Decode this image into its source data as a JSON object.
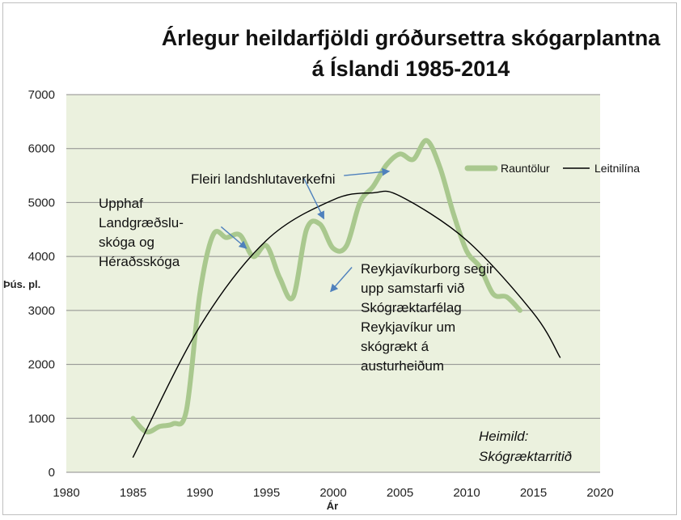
{
  "chart_data": {
    "type": "line",
    "title_lines": [
      "Árlegur heildarfjöldi gróðursettra skógarplantna",
      "á Íslandi 1985-2014"
    ],
    "xlabel": "Ár",
    "ylabel": "Þús. pl.",
    "xlim": [
      1980,
      2020
    ],
    "ylim": [
      0,
      7000
    ],
    "x_ticks": [
      1980,
      1985,
      1990,
      1995,
      2000,
      2005,
      2010,
      2015,
      2020
    ],
    "y_ticks": [
      0,
      1000,
      2000,
      3000,
      4000,
      5000,
      6000,
      7000
    ],
    "grid": "horizontal",
    "legend_position": "top-right",
    "series": [
      {
        "name": "Rauntölur",
        "color": "#a9c88e",
        "style": "smoothed",
        "x": [
          1985,
          1986,
          1987,
          1988,
          1989,
          1990,
          1991,
          1992,
          1993,
          1994,
          1995,
          1996,
          1997,
          1998,
          1999,
          2000,
          2001,
          2002,
          2003,
          2004,
          2005,
          2006,
          2007,
          2008,
          2009,
          2010,
          2011,
          2012,
          2013,
          2014
        ],
        "y": [
          1000,
          750,
          850,
          900,
          1150,
          3300,
          4400,
          4350,
          4400,
          4000,
          4200,
          3600,
          3250,
          4500,
          4600,
          4150,
          4200,
          5000,
          5300,
          5700,
          5900,
          5800,
          6150,
          5650,
          4800,
          4100,
          3800,
          3300,
          3250,
          3000
        ]
      },
      {
        "name": "Leitnilína",
        "color": "#000000",
        "style": "trendline",
        "x": [
          1985,
          1990,
          1995,
          2000,
          2003,
          2005,
          2010,
          2015,
          2017
        ],
        "y": [
          280,
          2700,
          4300,
          5050,
          5180,
          5120,
          4300,
          2950,
          2130
        ]
      }
    ],
    "annotations": [
      {
        "lines": [
          "Upphaf",
          "Landgræðslu-",
          "skóga og",
          "Héraðsskóga"
        ]
      },
      {
        "lines": [
          "Fleiri landshlutaverkefni"
        ]
      },
      {
        "lines": [
          "Reykjavíkurborg segir",
          "upp samstarfi við",
          "Skógræktarfélag",
          "Reykjavíkur um",
          "skógrækt á",
          "austurheiðum"
        ]
      },
      {
        "lines": [
          "Heimild:",
          "Skógræktarritið"
        ],
        "style": "italic"
      }
    ],
    "arrows": [
      {
        "from": [
          1991.6,
          4550
        ],
        "to": [
          1993.5,
          4150
        ]
      },
      {
        "from": [
          2000.8,
          5500
        ],
        "to": [
          2004.2,
          5580
        ]
      },
      {
        "from": [
          1997.8,
          5450
        ],
        "to": [
          1999.3,
          4700
        ]
      },
      {
        "from": [
          2001.4,
          3800
        ],
        "to": [
          1999.8,
          3350
        ]
      }
    ],
    "colors": {
      "plot_background": "#ebf1de",
      "grid": "#8c8c8c",
      "frame": "#bfbfbf",
      "arrow": "#4f81bd"
    }
  }
}
